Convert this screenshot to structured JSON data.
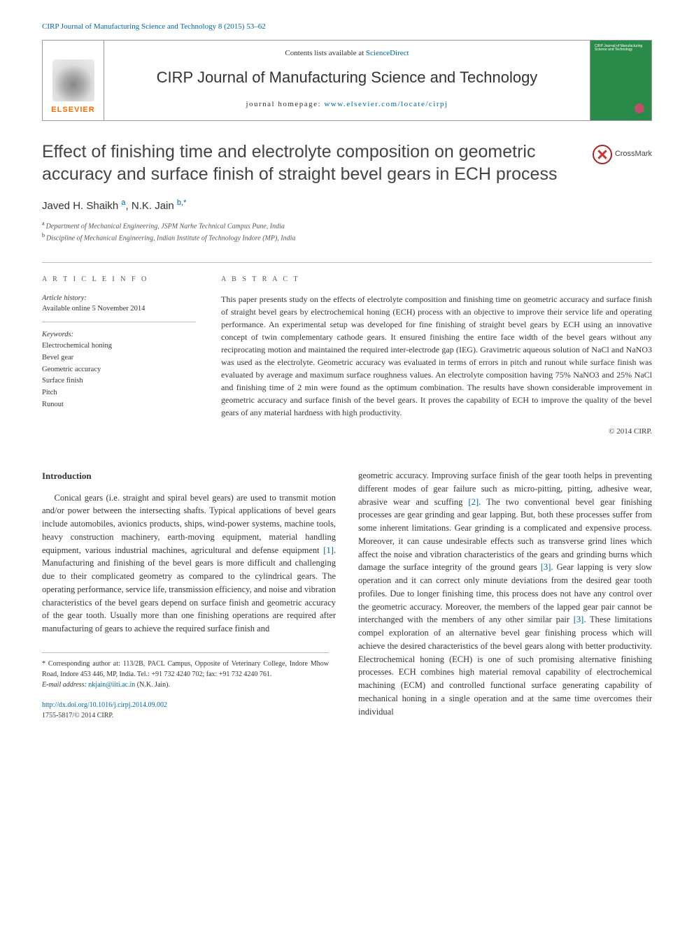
{
  "topbar": "CIRP Journal of Manufacturing Science and Technology 8 (2015) 53–62",
  "header": {
    "contents_prefix": "Contents lists available at ",
    "contents_link": "ScienceDirect",
    "journal": "CIRP Journal of Manufacturing Science and Technology",
    "homepage_prefix": "journal homepage: ",
    "homepage_link": "www.elsevier.com/locate/cirpj",
    "elsevier": "ELSEVIER",
    "cover_tiny": "CIRP Journal of Manufacturing Science and Technology"
  },
  "crossmark": "CrossMark",
  "title": "Effect of finishing time and electrolyte composition on geometric accuracy and surface finish of straight bevel gears in ECH process",
  "authors_html": {
    "a1": "Javed H. Shaikh",
    "a1_aff": "a",
    "a2": "N.K. Jain",
    "a2_aff": "b,*"
  },
  "affiliations": {
    "a": "Department of Mechanical Engineering, JSPM Narhe Technical Campus Pune, India",
    "b": "Discipline of Mechanical Engineering, Indian Institute of Technology Indore (MP), India"
  },
  "article_info": {
    "head": "A R T I C L E  I N F O",
    "history_label": "Article history:",
    "history_value": "Available online 5 November 2014",
    "keywords_label": "Keywords:",
    "keywords": [
      "Electrochemical honing",
      "Bevel gear",
      "Geometric accuracy",
      "Surface finish",
      "Pitch",
      "Runout"
    ]
  },
  "abstract": {
    "head": "A B S T R A C T",
    "text": "This paper presents study on the effects of electrolyte composition and finishing time on geometric accuracy and surface finish of straight bevel gears by electrochemical honing (ECH) process with an objective to improve their service life and operating performance. An experimental setup was developed for fine finishing of straight bevel gears by ECH using an innovative concept of twin complementary cathode gears. It ensured finishing the entire face width of the bevel gears without any reciprocating motion and maintained the required inter-electrode gap (IEG). Gravimetric aqueous solution of NaCl and NaNO3 was used as the electrolyte. Geometric accuracy was evaluated in terms of errors in pitch and runout while surface finish was evaluated by average and maximum surface roughness values. An electrolyte composition having 75% NaNO3 and 25% NaCl and finishing time of 2 min were found as the optimum combination. The results have shown considerable improvement in geometric accuracy and surface finish of the bevel gears. It proves the capability of ECH to improve the quality of the bevel gears of any material hardness with high productivity.",
    "copyright": "© 2014 CIRP."
  },
  "intro": {
    "heading": "Introduction",
    "p1": "Conical gears (i.e. straight and spiral bevel gears) are used to transmit motion and/or power between the intersecting shafts. Typical applications of bevel gears include automobiles, avionics products, ships, wind-power systems, machine tools, heavy construction machinery, earth-moving equipment, material handling equipment, various industrial machines, agricultural and defense equipment [1]. Manufacturing and finishing of the bevel gears is more difficult and challenging due to their complicated geometry as compared to the cylindrical gears. The operating performance, service life, transmission efficiency, and noise and vibration characteristics of the bevel gears depend on surface finish and geometric accuracy of the gear tooth. Usually more than one finishing operations are required after manufacturing of gears to achieve the required surface finish and",
    "p2": "geometric accuracy. Improving surface finish of the gear tooth helps in preventing different modes of gear failure such as micro-pitting, pitting, adhesive wear, abrasive wear and scuffing [2]. The two conventional bevel gear finishing processes are gear grinding and gear lapping. But, both these processes suffer from some inherent limitations. Gear grinding is a complicated and expensive process. Moreover, it can cause undesirable effects such as transverse grind lines which affect the noise and vibration characteristics of the gears and grinding burns which damage the surface integrity of the ground gears [3]. Gear lapping is very slow operation and it can correct only minute deviations from the desired gear tooth profiles. Due to longer finishing time, this process does not have any control over the geometric accuracy. Moreover, the members of the lapped gear pair cannot be interchanged with the members of any other similar pair [3]. These limitations compel exploration of an alternative bevel gear finishing process which will achieve the desired characteristics of the bevel gears along with better productivity. Electrochemical honing (ECH) is one of such promising alternative finishing processes. ECH combines high material removal capability of electrochemical machining (ECM) and controlled functional surface generating capability of mechanical honing in a single operation and at the same time overcomes their individual"
  },
  "footnotes": {
    "corr": "* Corresponding author at: 113/2B, PACL Campus, Opposite of Veterinary College, Indore Mhow Road, Indore 453 446, MP, India. Tel.: +91 732 4240 702; fax: +91 732 4240 761.",
    "email_label": "E-mail address: ",
    "email": "nkjain@iiti.ac.in",
    "email_who": " (N.K. Jain)."
  },
  "doi": {
    "link": "http://dx.doi.org/10.1016/j.cirpj.2014.09.002",
    "issn": "1755-5817/© 2014 CIRP."
  },
  "colors": {
    "link": "#0066a1",
    "elsevier_orange": "#ff6a00",
    "cover_green": "#2a8a4a",
    "crossmark_red": "#cc3333"
  }
}
